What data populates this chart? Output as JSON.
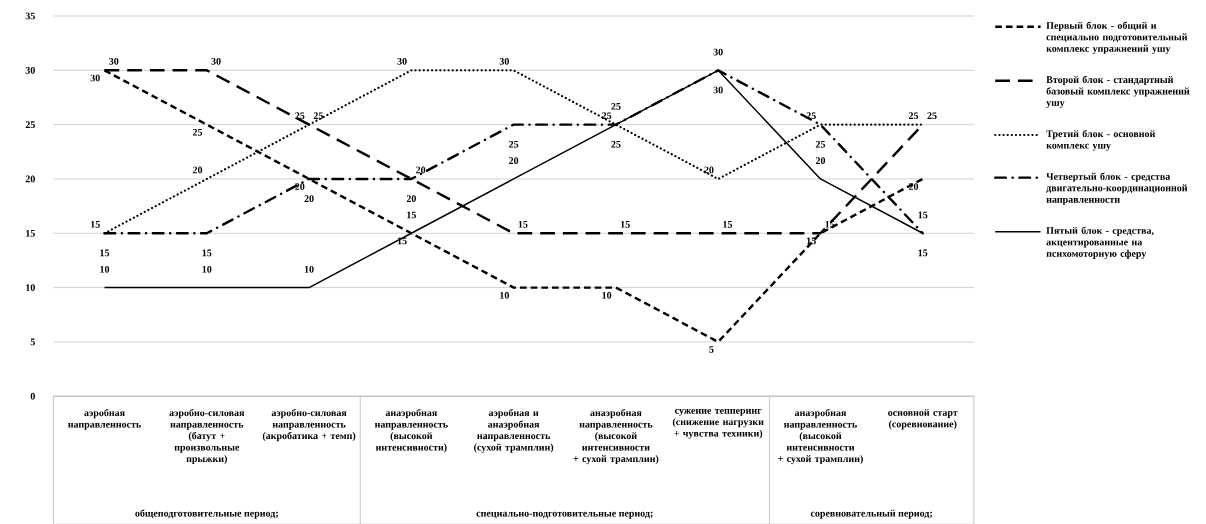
{
  "chart_data": {
    "type": "line",
    "categories": [
      "аэробная направленность",
      "аэробно-силовая направленность (батут + произвольные прыжки)",
      "аэробно-силовая направленность (акробатика + темп)",
      "анаэробная направленность (высокой интенсивности)",
      "аэробная и анаэробная направленность (сухой трамплин)",
      "анаэробная направленность (высокой интенсивности + сухой трамплин)",
      "сужение тепперинг (снижение нагрузки + чувства техники)",
      "анаэробная направленность (высокой интенсивности + сухой трамплин)",
      "основной старт (соревнование)"
    ],
    "series": [
      {
        "name": "Первый блок - общий и специально подготовительный комплекс упражнений ушу",
        "color": "#000000",
        "line_style": "dashed",
        "values": [
          30,
          25,
          20,
          15,
          10,
          10,
          5,
          15,
          20
        ]
      },
      {
        "name": "Второй блок - стандартный базовый комплекс упражнений ушу",
        "color": "#000000",
        "line_style": "long dashed",
        "values": [
          30,
          30,
          25,
          20,
          15,
          15,
          15,
          15,
          25
        ]
      },
      {
        "name": "Третий блок - основной комплекс ушу",
        "color": "#000000",
        "line_style": "dotted",
        "values": [
          15,
          20,
          25,
          30,
          30,
          25,
          20,
          25,
          25
        ]
      },
      {
        "name": "Четвертый блок - средства двигательно-координационной направленности",
        "color": "#000000",
        "line_style": "dash dot",
        "values": [
          15,
          15,
          20,
          20,
          25,
          25,
          30,
          25,
          15
        ]
      },
      {
        "name": "Пятый блок - средства, акцентированные на психомоторную сферу",
        "color": "#000000",
        "line_style": "solid",
        "values": [
          10,
          10,
          10,
          15,
          20,
          25,
          30,
          20,
          15
        ]
      }
    ],
    "ylim": [
      0,
      35
    ],
    "yticks": [
      0,
      5,
      10,
      15,
      20,
      25,
      30,
      35
    ],
    "grid": "y",
    "legend": "right",
    "data_labels": true,
    "marker": "none",
    "annotations": [
      "общеподготовительные период;",
      "специально-подготовительные период;",
      "соревновательный период;"
    ]
  }
}
